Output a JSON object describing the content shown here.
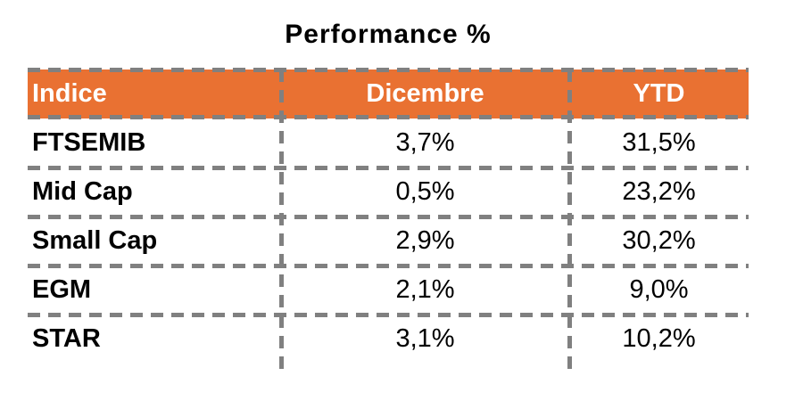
{
  "title": "Performance %",
  "chart_data": {
    "type": "table",
    "title": "Performance %",
    "columns": [
      "Indice",
      "Dicembre",
      "YTD"
    ],
    "rows": [
      [
        "FTSEMIB",
        "3,7%",
        "31,5%"
      ],
      [
        "Mid Cap",
        "0,5%",
        "23,2%"
      ],
      [
        "Small Cap",
        "2,9%",
        "30,2%"
      ],
      [
        "EGM",
        "2,1%",
        "9,0%"
      ],
      [
        "STAR",
        "3,1%",
        "10,2%"
      ]
    ],
    "categories": [
      "FTSEMIB",
      "Mid Cap",
      "Small Cap",
      "EGM",
      "STAR"
    ],
    "series": [
      {
        "name": "Dicembre",
        "values": [
          3.7,
          0.5,
          2.9,
          2.1,
          3.1
        ]
      },
      {
        "name": "YTD",
        "values": [
          31.5,
          23.2,
          30.2,
          9.0,
          10.2
        ]
      }
    ],
    "layout": {
      "header_style": "orange background, white bold text",
      "grid": "gray dashed borders, no bottom border on last row",
      "value_alignment": "center",
      "label_alignment": "left"
    }
  },
  "colors": {
    "header-bg": "#E97132",
    "header-text": "#FFFFFF",
    "border": "#808080",
    "text": "#000000",
    "background": "#FFFFFF"
  }
}
